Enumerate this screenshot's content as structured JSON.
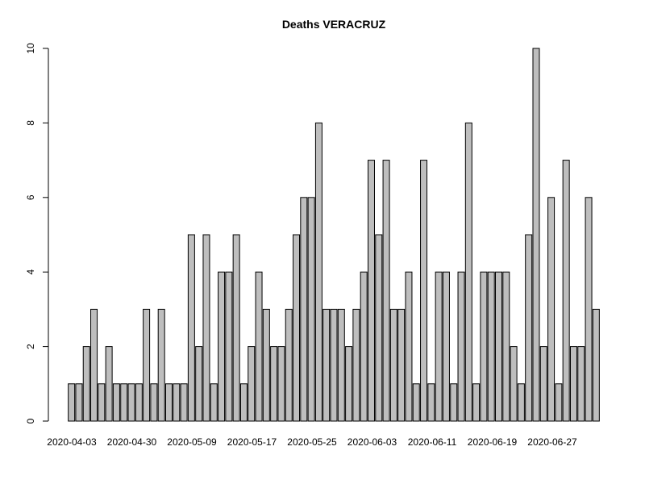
{
  "chart_data": {
    "type": "bar",
    "title": "Deaths VERACRUZ",
    "xlabel": "",
    "ylabel": "",
    "ylim": [
      0,
      10
    ],
    "yticks": [
      0,
      2,
      4,
      6,
      8,
      10
    ],
    "x_tick_labels": [
      "2020-04-03",
      "2020-04-30",
      "2020-05-09",
      "2020-05-17",
      "2020-05-25",
      "2020-06-03",
      "2020-06-11",
      "2020-06-19",
      "2020-06-27"
    ],
    "values": [
      1,
      1,
      2,
      3,
      1,
      2,
      1,
      1,
      1,
      1,
      3,
      1,
      3,
      1,
      1,
      1,
      5,
      2,
      5,
      1,
      4,
      4,
      5,
      1,
      2,
      4,
      3,
      2,
      2,
      3,
      5,
      6,
      6,
      8,
      3,
      3,
      3,
      2,
      3,
      4,
      7,
      5,
      7,
      3,
      3,
      4,
      1,
      7,
      1,
      4,
      4,
      1,
      4,
      8,
      1,
      4,
      4,
      4,
      4,
      2,
      1,
      5,
      10,
      2,
      6,
      1,
      7,
      2,
      2,
      6,
      3
    ],
    "bar_color": "#bebebe",
    "grid": false,
    "legend": "none"
  }
}
